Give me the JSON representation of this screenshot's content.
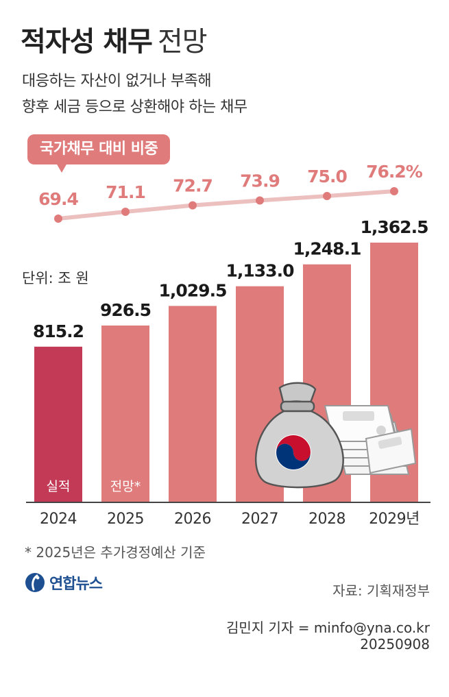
{
  "header": {
    "title_bold": "적자성 채무",
    "title_light": "전망",
    "subtitle_line1": "대응하는 자산이 없거나 부족해",
    "subtitle_line2": "향후 세금 등으로 상환해야 하는 채무"
  },
  "ratio_badge": "국가채무 대비 비중",
  "unit_label": "단위: 조 원",
  "chart_data": [
    {
      "type": "bar",
      "categories": [
        "2024",
        "2025",
        "2026",
        "2027",
        "2028",
        "2029년"
      ],
      "values": [
        815.2,
        926.5,
        1029.5,
        1133.0,
        1248.1,
        1362.5
      ],
      "value_labels": [
        "815.2",
        "926.5",
        "1,029.5",
        "1,133.0",
        "1,248.1",
        "1,362.5"
      ],
      "bar_notes": [
        "실적",
        "전망*",
        "",
        "",
        "",
        ""
      ],
      "ylabel": "단위: 조 원",
      "ylim": [
        0,
        1400
      ],
      "colors": {
        "actual": "#c23a56",
        "forecast": "#e07b7b"
      }
    },
    {
      "type": "line",
      "title": "국가채무 대비 비중",
      "categories": [
        "2024",
        "2025",
        "2026",
        "2027",
        "2028",
        "2029년"
      ],
      "values": [
        69.4,
        71.1,
        72.7,
        73.9,
        75.0,
        76.2
      ],
      "value_labels": [
        "69.4",
        "71.1",
        "72.7",
        "73.9",
        "75.0",
        "76.2%"
      ],
      "unit": "%",
      "ylim": [
        69.4,
        76.2
      ],
      "colors": {
        "line": "#edc0c0",
        "dot": "#e07b7b",
        "label": "#e07b7b"
      }
    }
  ],
  "footnote": "* 2025년은 추가경정예산 기준",
  "logo": {
    "text": "연합뉴스",
    "icon": "yonhap-logo-icon",
    "color": "#1d4f91"
  },
  "source": "자료: 기획재정부",
  "credit": "김민지 기자 = minfo@yna.co.kr",
  "datecode": "20250908"
}
